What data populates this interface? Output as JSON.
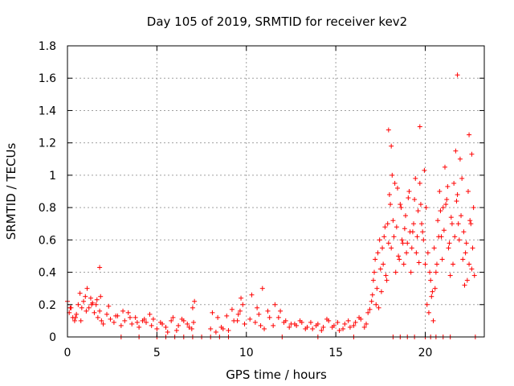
{
  "colors": {
    "marker": "#ff0000",
    "grid": "#a0a0a0",
    "axis": "#000000"
  },
  "chart_data": {
    "type": "scatter",
    "title": "Day 105 of 2019, SRMTID for receiver kev2",
    "xlabel": "GPS time / hours",
    "ylabel": "SRMTID / TECUs",
    "xlim": [
      0,
      23.3
    ],
    "ylim": [
      0,
      1.8
    ],
    "xticks": [
      0,
      5,
      10,
      15,
      20
    ],
    "xtick_labels": [
      "0",
      "5",
      "10",
      "15",
      "20"
    ],
    "yticks": [
      0,
      0.2,
      0.4,
      0.6,
      0.8,
      1,
      1.2,
      1.4,
      1.6,
      1.8
    ],
    "ytick_labels": [
      "0",
      "0.2",
      "0.4",
      "0.6",
      "0.8",
      "1",
      "1.2",
      "1.4",
      "1.6",
      "1.8"
    ],
    "grid": true,
    "marker": "plus",
    "series": [
      {
        "name": "SRMTID",
        "x": [
          0.0,
          0.1,
          0.2,
          0.3,
          0.4,
          0.5,
          0.6,
          0.7,
          0.8,
          0.9,
          1.0,
          1.1,
          1.2,
          1.3,
          1.4,
          1.5,
          1.6,
          1.7,
          1.8,
          1.9,
          2.0,
          2.2,
          2.4,
          2.6,
          2.8,
          3.0,
          3.2,
          3.4,
          3.6,
          3.8,
          4.0,
          4.2,
          4.4,
          4.6,
          4.8,
          5.0,
          5.3,
          5.6,
          5.9,
          6.2,
          6.5,
          6.8,
          7.0,
          7.1,
          8.0,
          8.3,
          8.6,
          8.9,
          9.2,
          9.5,
          9.7,
          9.9,
          10.2,
          10.5,
          10.7,
          10.9,
          11.2,
          11.5,
          11.8,
          12.1,
          12.4,
          12.7,
          13.0,
          13.3,
          13.6,
          13.9,
          14.2,
          14.5,
          14.8,
          15.1,
          15.4,
          15.7,
          16.0,
          16.3,
          16.6,
          16.8,
          17.0,
          17.1,
          17.2,
          17.3,
          17.4,
          17.5,
          17.6,
          17.7,
          17.8,
          17.9,
          18.0,
          18.1,
          18.2,
          18.3,
          18.4,
          18.5,
          18.6,
          18.7,
          18.8,
          18.9,
          19.0,
          19.1,
          19.2,
          19.3,
          19.4,
          19.5,
          19.6,
          19.7,
          19.8,
          19.9,
          20.0,
          20.1,
          20.2,
          20.3,
          20.4,
          20.5,
          20.6,
          20.7,
          20.8,
          20.9,
          21.0,
          21.1,
          21.2,
          21.3,
          21.4,
          21.5,
          21.6,
          21.7,
          21.8,
          21.9,
          22.0,
          22.1,
          22.2,
          22.3,
          22.4,
          22.5,
          22.6,
          22.7,
          0.15,
          0.45,
          0.75,
          1.05,
          1.35,
          1.65,
          1.85,
          2.3,
          2.7,
          3.1,
          3.5,
          3.9,
          4.3,
          4.7,
          5.2,
          5.5,
          5.8,
          6.1,
          6.4,
          6.7,
          6.95,
          7.05,
          8.1,
          8.4,
          8.7,
          9.0,
          9.3,
          9.55,
          9.65,
          9.8,
          10.3,
          10.6,
          10.8,
          11.0,
          11.3,
          11.6,
          11.9,
          12.2,
          12.5,
          12.8,
          13.1,
          13.4,
          13.7,
          14.0,
          14.3,
          14.6,
          14.9,
          15.2,
          15.5,
          15.8,
          16.1,
          16.4,
          16.7,
          16.9,
          17.05,
          17.15,
          17.25,
          17.35,
          17.45,
          17.55,
          17.65,
          17.75,
          17.85,
          17.95,
          18.05,
          18.15,
          18.25,
          18.35,
          18.45,
          18.55,
          18.65,
          18.75,
          18.85,
          18.95,
          19.05,
          19.15,
          19.25,
          19.35,
          19.45,
          19.55,
          19.65,
          19.75,
          19.85,
          19.95,
          20.05,
          20.15,
          20.25,
          20.35,
          20.45,
          20.55,
          20.65,
          20.75,
          20.85,
          20.95,
          21.05,
          21.15,
          21.25,
          21.35,
          21.45,
          21.55,
          21.65,
          21.75,
          21.85,
          21.95,
          22.05,
          22.15,
          22.25,
          22.35,
          22.45,
          22.55,
          22.65,
          22.75,
          1.8,
          17.95,
          18.1,
          19.7,
          21.8,
          22.45,
          22.6,
          5.0,
          5.5,
          6.0,
          6.5,
          7.0,
          7.5,
          8.0,
          8.5,
          9.0,
          18.2,
          18.6,
          19.0,
          19.4,
          20.0,
          20.3,
          20.6,
          21.0,
          21.4,
          22.8,
          3.0,
          4.0,
          12.0,
          14.0,
          16.0
        ],
        "y": [
          0.22,
          0.15,
          0.18,
          0.12,
          0.1,
          0.14,
          0.2,
          0.27,
          0.18,
          0.22,
          0.25,
          0.3,
          0.18,
          0.24,
          0.21,
          0.15,
          0.2,
          0.12,
          0.16,
          0.1,
          0.08,
          0.14,
          0.11,
          0.09,
          0.13,
          0.07,
          0.1,
          0.15,
          0.08,
          0.12,
          0.06,
          0.1,
          0.09,
          0.14,
          0.11,
          0.05,
          0.08,
          0.03,
          0.12,
          0.07,
          0.1,
          0.06,
          0.18,
          0.22,
          0.05,
          0.03,
          0.06,
          0.13,
          0.17,
          0.1,
          0.24,
          0.08,
          0.11,
          0.09,
          0.14,
          0.3,
          0.16,
          0.07,
          0.12,
          0.09,
          0.06,
          0.08,
          0.1,
          0.05,
          0.09,
          0.07,
          0.04,
          0.11,
          0.06,
          0.09,
          0.05,
          0.1,
          0.07,
          0.12,
          0.06,
          0.15,
          0.22,
          0.35,
          0.48,
          0.3,
          0.18,
          0.42,
          0.55,
          0.62,
          0.38,
          0.7,
          0.88,
          0.55,
          0.72,
          0.95,
          0.68,
          0.5,
          0.82,
          0.6,
          0.45,
          0.75,
          0.58,
          0.9,
          0.4,
          0.65,
          0.85,
          0.52,
          0.78,
          0.95,
          0.7,
          0.6,
          0.45,
          0.2,
          0.15,
          0.35,
          0.28,
          0.55,
          0.4,
          0.72,
          0.9,
          0.62,
          0.8,
          1.05,
          0.85,
          0.55,
          0.38,
          0.7,
          0.95,
          1.15,
          0.88,
          0.6,
          0.75,
          0.48,
          0.32,
          0.58,
          0.9,
          0.72,
          0.42,
          0.8,
          0.18,
          0.12,
          0.1,
          0.16,
          0.2,
          0.23,
          0.25,
          0.19,
          0.13,
          0.16,
          0.12,
          0.09,
          0.11,
          0.07,
          0.09,
          0.06,
          0.1,
          0.04,
          0.11,
          0.08,
          0.05,
          0.09,
          0.15,
          0.12,
          0.05,
          0.04,
          0.1,
          0.14,
          0.16,
          0.2,
          0.26,
          0.18,
          0.07,
          0.05,
          0.12,
          0.2,
          0.16,
          0.1,
          0.08,
          0.07,
          0.09,
          0.06,
          0.05,
          0.08,
          0.06,
          0.1,
          0.07,
          0.04,
          0.08,
          0.06,
          0.09,
          0.11,
          0.08,
          0.17,
          0.26,
          0.4,
          0.2,
          0.52,
          0.6,
          0.28,
          0.45,
          0.68,
          0.35,
          0.58,
          0.82,
          1.0,
          0.62,
          0.4,
          0.92,
          0.48,
          0.8,
          0.58,
          0.67,
          0.52,
          0.86,
          0.65,
          0.55,
          0.7,
          0.98,
          0.62,
          0.46,
          0.82,
          0.65,
          1.03,
          0.8,
          0.52,
          0.4,
          0.25,
          0.1,
          0.3,
          0.45,
          0.62,
          0.78,
          0.48,
          0.66,
          0.82,
          0.93,
          0.58,
          0.74,
          0.45,
          0.62,
          0.84,
          0.7,
          1.1,
          0.98,
          0.65,
          0.52,
          0.35,
          0.45,
          0.7,
          0.55,
          0.38,
          0.43,
          1.28,
          1.18,
          1.3,
          1.62,
          1.25,
          1.13,
          0,
          0,
          0,
          0,
          0,
          0,
          0,
          0,
          0,
          0,
          0,
          0,
          0,
          0,
          0,
          0,
          0,
          0,
          0,
          0,
          0,
          0,
          0,
          0
        ],
        "color": "#ff0000"
      }
    ]
  }
}
